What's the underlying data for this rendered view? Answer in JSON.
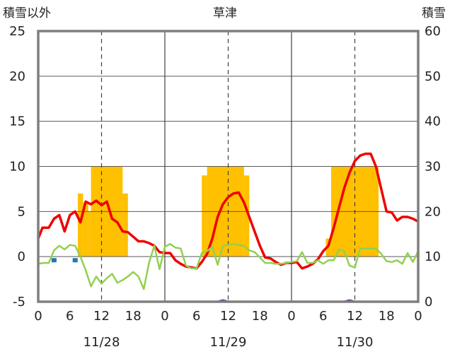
{
  "chart_data": {
    "type": "line",
    "title": "草津",
    "ylabel_left": "積雪以外",
    "ylabel_right": "積雪",
    "ylim_left": [
      -5,
      25
    ],
    "ylim_right": [
      0,
      60
    ],
    "left_ticks": [
      "25",
      "20",
      "15",
      "10",
      "5",
      "0",
      "-5"
    ],
    "right_ticks": [
      "60",
      "50",
      "40",
      "30",
      "20",
      "10",
      "0"
    ],
    "x_range_hours": [
      0,
      72
    ],
    "hour_ticks": [
      {
        "h": 0,
        "label": "0"
      },
      {
        "h": 6,
        "label": "6"
      },
      {
        "h": 12,
        "label": "12"
      },
      {
        "h": 18,
        "label": "18"
      },
      {
        "h": 24,
        "label": "0"
      },
      {
        "h": 30,
        "label": "6"
      },
      {
        "h": 36,
        "label": "12"
      },
      {
        "h": 42,
        "label": "18"
      },
      {
        "h": 48,
        "label": "0"
      },
      {
        "h": 54,
        "label": "6"
      },
      {
        "h": 60,
        "label": "12"
      },
      {
        "h": 66,
        "label": "18"
      },
      {
        "h": 72,
        "label": "0"
      }
    ],
    "dates": [
      {
        "h": 12,
        "label": "11/28"
      },
      {
        "h": 36,
        "label": "11/29"
      },
      {
        "h": 60,
        "label": "11/30"
      }
    ],
    "day_dividers": [
      24,
      48
    ],
    "noon_lines": [
      12,
      36,
      60
    ],
    "colors": {
      "bars": "#FFC000",
      "red": "#EE0000",
      "green": "#92D050",
      "purple": "#7030A0",
      "blue": "#1F77B4",
      "frame": "#7f7f7f"
    },
    "bars_axis": "left",
    "bars": [
      {
        "x0": 7.5,
        "x1": 8.5,
        "y": 7
      },
      {
        "x0": 8.5,
        "x1": 9.5,
        "y": 6
      },
      {
        "x0": 9.5,
        "x1": 10.0,
        "y": 5
      },
      {
        "x0": 10.0,
        "x1": 16.0,
        "y": 10
      },
      {
        "x0": 16.0,
        "x1": 17.0,
        "y": 7
      },
      {
        "x0": 31.0,
        "x1": 32.0,
        "y": 9
      },
      {
        "x0": 32.0,
        "x1": 39.0,
        "y": 10
      },
      {
        "x0": 39.0,
        "x1": 40.0,
        "y": 9
      },
      {
        "x0": 54.5,
        "x1": 55.5,
        "y": 2
      },
      {
        "x0": 55.5,
        "x1": 64.5,
        "y": 10
      }
    ],
    "series": [
      {
        "color_key": "red",
        "width": 3.5,
        "points": [
          [
            0,
            2
          ],
          [
            0.8,
            3.2
          ],
          [
            2,
            3.2
          ],
          [
            3,
            4.2
          ],
          [
            4,
            4.6
          ],
          [
            5,
            2.8
          ],
          [
            6,
            4.6
          ],
          [
            7,
            5
          ],
          [
            8,
            3.8
          ],
          [
            9,
            6.1
          ],
          [
            10,
            5.8
          ],
          [
            11,
            6.2
          ],
          [
            12,
            5.7
          ],
          [
            13,
            6.1
          ],
          [
            14,
            4.2
          ],
          [
            15,
            3.8
          ],
          [
            16,
            2.8
          ],
          [
            17,
            2.7
          ],
          [
            18,
            2.2
          ],
          [
            19,
            1.7
          ],
          [
            20,
            1.7
          ],
          [
            21,
            1.5
          ],
          [
            22,
            1.2
          ],
          [
            23,
            0.5
          ],
          [
            24,
            0.4
          ],
          [
            25,
            0.4
          ],
          [
            26,
            -0.4
          ],
          [
            27,
            -0.8
          ],
          [
            28,
            -1.1
          ],
          [
            29,
            -1.2
          ],
          [
            30,
            -1.3
          ],
          [
            31,
            -0.6
          ],
          [
            32,
            0.3
          ],
          [
            33,
            2.0
          ],
          [
            34,
            4.4
          ],
          [
            35,
            5.8
          ],
          [
            36,
            6.6
          ],
          [
            37,
            7.0
          ],
          [
            38,
            7.1
          ],
          [
            39,
            6.0
          ],
          [
            40,
            4.4
          ],
          [
            41,
            2.8
          ],
          [
            42,
            1.2
          ],
          [
            43,
            -0.1
          ],
          [
            44,
            -0.2
          ],
          [
            45,
            -0.6
          ],
          [
            46,
            -0.9
          ],
          [
            47,
            -0.7
          ],
          [
            48,
            -0.7
          ],
          [
            49,
            -0.6
          ],
          [
            50,
            -1.3
          ],
          [
            51,
            -1.1
          ],
          [
            52,
            -0.8
          ],
          [
            53,
            -0.3
          ],
          [
            54,
            0.6
          ],
          [
            55,
            1.2
          ],
          [
            56,
            3.2
          ],
          [
            57,
            5.4
          ],
          [
            58,
            7.6
          ],
          [
            59,
            9.3
          ],
          [
            60,
            10.6
          ],
          [
            61,
            11.2
          ],
          [
            62,
            11.4
          ],
          [
            63,
            11.4
          ],
          [
            64,
            10.0
          ],
          [
            65,
            7.5
          ],
          [
            66,
            5.0
          ],
          [
            67,
            4.9
          ],
          [
            68,
            4.0
          ],
          [
            69,
            4.4
          ],
          [
            70,
            4.4
          ],
          [
            71,
            4.2
          ],
          [
            72,
            3.9
          ]
        ]
      },
      {
        "color_key": "green",
        "width": 2.5,
        "points": [
          [
            0,
            -0.8
          ],
          [
            1,
            -0.7
          ],
          [
            2,
            -0.7
          ],
          [
            3,
            0.7
          ],
          [
            4,
            1.2
          ],
          [
            5,
            0.8
          ],
          [
            6,
            1.3
          ],
          [
            7,
            1.2
          ],
          [
            8,
            0.0
          ],
          [
            9,
            -1.5
          ],
          [
            10,
            -3.3
          ],
          [
            11,
            -2.2
          ],
          [
            12,
            -3.0
          ],
          [
            13,
            -2.4
          ],
          [
            14,
            -1.9
          ],
          [
            15,
            -2.9
          ],
          [
            16,
            -2.6
          ],
          [
            17,
            -2.2
          ],
          [
            18,
            -1.7
          ],
          [
            19,
            -2.2
          ],
          [
            20,
            -3.6
          ],
          [
            21,
            -0.7
          ],
          [
            22,
            1.2
          ],
          [
            23,
            -1.4
          ],
          [
            24,
            1.1
          ],
          [
            25,
            1.4
          ],
          [
            26,
            1.0
          ],
          [
            27,
            0.9
          ],
          [
            28,
            -1.0
          ],
          [
            29,
            -1.3
          ],
          [
            30,
            -1.3
          ],
          [
            31,
            0.4
          ],
          [
            32,
            0.6
          ],
          [
            33,
            1.1
          ],
          [
            34,
            -0.9
          ],
          [
            35,
            1.2
          ],
          [
            36,
            1.3
          ],
          [
            37,
            1.4
          ],
          [
            38,
            1.3
          ],
          [
            39,
            1.2
          ],
          [
            40,
            0.7
          ],
          [
            41,
            0.5
          ],
          [
            42,
            -0.1
          ],
          [
            43,
            -0.7
          ],
          [
            44,
            -0.7
          ],
          [
            45,
            -0.8
          ],
          [
            46,
            -0.8
          ],
          [
            47,
            -0.7
          ],
          [
            48,
            -0.6
          ],
          [
            49,
            -0.5
          ],
          [
            50,
            0.5
          ],
          [
            51,
            -0.7
          ],
          [
            52,
            -0.7
          ],
          [
            53,
            -0.4
          ],
          [
            54,
            -0.8
          ],
          [
            55,
            -0.4
          ],
          [
            56,
            -0.4
          ],
          [
            57,
            0.8
          ],
          [
            58,
            0.6
          ],
          [
            59,
            -1.0
          ],
          [
            60,
            -1.2
          ],
          [
            61,
            0.9
          ],
          [
            62,
            0.9
          ],
          [
            63,
            0.9
          ],
          [
            64,
            0.9
          ],
          [
            65,
            0.3
          ],
          [
            66,
            -0.5
          ],
          [
            67,
            -0.6
          ],
          [
            68,
            -0.4
          ],
          [
            69,
            -0.8
          ],
          [
            70,
            0.4
          ],
          [
            71,
            -0.6
          ],
          [
            72,
            0.6
          ]
        ]
      },
      {
        "color_key": "purple",
        "width": 3,
        "points": [
          [
            0,
            -5
          ],
          [
            34,
            -5
          ],
          [
            35,
            -4.85
          ],
          [
            36,
            -5
          ],
          [
            58,
            -5
          ],
          [
            59,
            -4.85
          ],
          [
            60,
            -5
          ],
          [
            72,
            -5
          ]
        ]
      }
    ],
    "markers": [
      {
        "color_key": "blue",
        "h": 3,
        "y": -0.4
      },
      {
        "color_key": "blue",
        "h": 7,
        "y": -0.4
      }
    ]
  }
}
